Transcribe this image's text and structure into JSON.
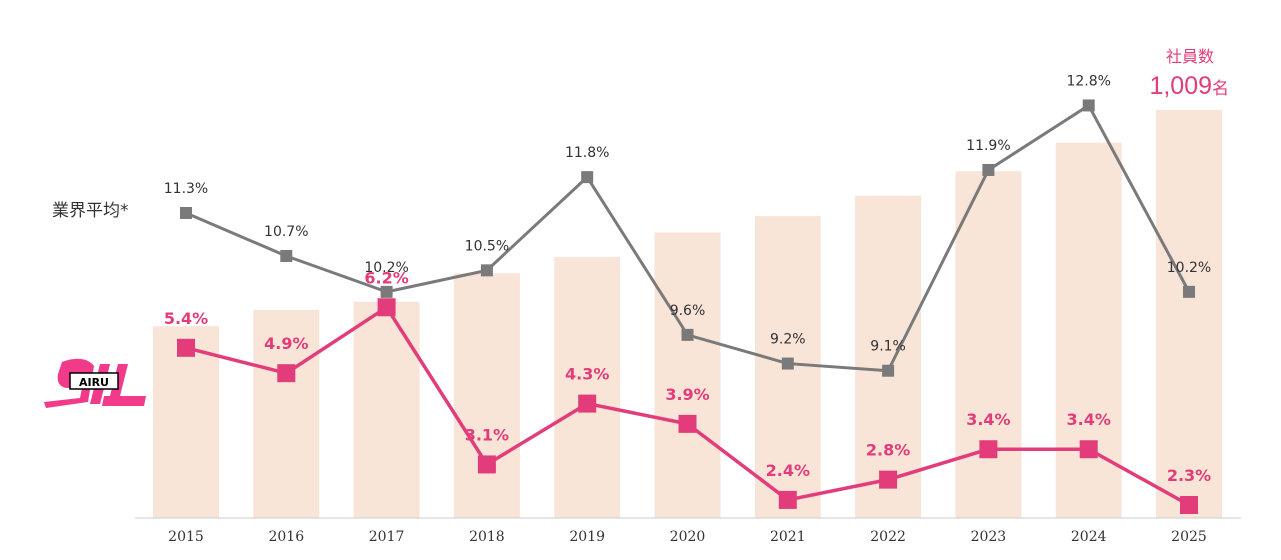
{
  "chart_data": {
    "type": "bar+line",
    "categories": [
      "2015",
      "2016",
      "2017",
      "2018",
      "2019",
      "2020",
      "2021",
      "2022",
      "2023",
      "2024",
      "2025"
    ],
    "employees_bar": {
      "name": "社員数",
      "relative_values": [
        0.47,
        0.51,
        0.53,
        0.6,
        0.64,
        0.7,
        0.74,
        0.79,
        0.85,
        0.92,
        1.0
      ],
      "final_label": "1,009",
      "unit": "名"
    },
    "series": [
      {
        "name": "業界平均*",
        "values": [
          11.3,
          10.7,
          10.2,
          10.5,
          11.8,
          9.6,
          9.2,
          9.1,
          11.9,
          12.8,
          10.2
        ],
        "labels": [
          "11.3%",
          "10.7%",
          "10.2%",
          "10.5%",
          "11.8%",
          "9.6%",
          "9.2%",
          "9.1%",
          "11.9%",
          "12.8%",
          "10.2%"
        ],
        "color": "#7a7a7a"
      },
      {
        "name": "AIRU",
        "values": [
          5.4,
          4.9,
          6.2,
          3.1,
          4.3,
          3.9,
          2.4,
          2.8,
          3.4,
          3.4,
          2.3
        ],
        "labels": [
          "5.4%",
          "4.9%",
          "6.2%",
          "3.1%",
          "4.3%",
          "3.9%",
          "2.4%",
          "2.8%",
          "3.4%",
          "3.4%",
          "2.3%"
        ],
        "color": "#e23d7a"
      }
    ],
    "legend": {
      "industry_label": "業界平均*",
      "company_logo_text": "AIRU"
    },
    "bar_color": "#f9e4d8",
    "axis_color": "#cccccc"
  }
}
